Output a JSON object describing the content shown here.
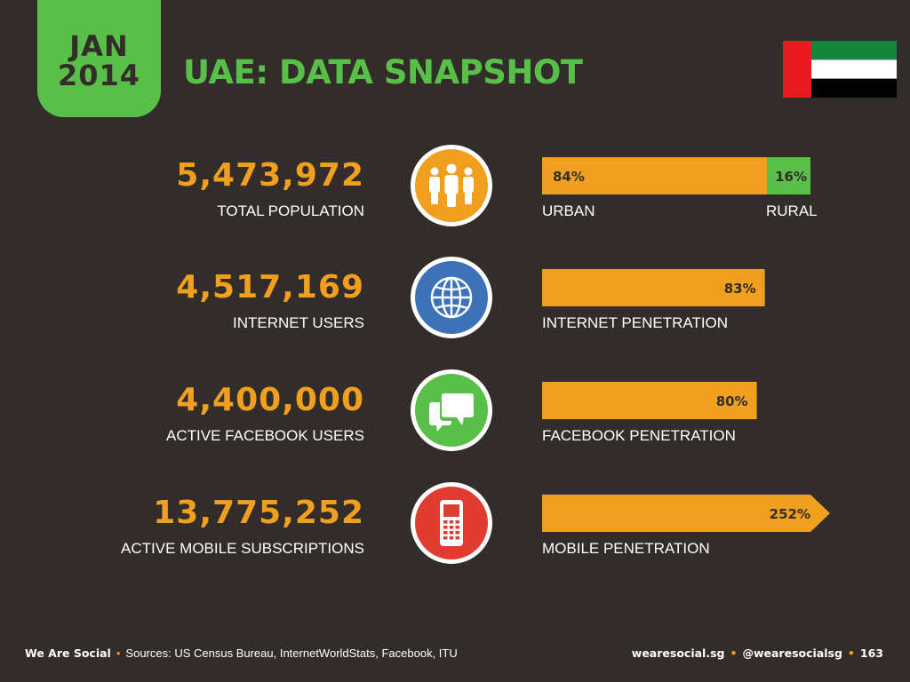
{
  "header": {
    "month": "JAN",
    "year": "2014",
    "title": "UAE: DATA SNAPSHOT"
  },
  "flag": {
    "country": "UAE",
    "colors": {
      "red": "#e8191f",
      "green": "#16843c",
      "white": "#ffffff",
      "black": "#000000"
    }
  },
  "colors": {
    "accent": "#f0a01e",
    "brand_green": "#58bf48",
    "background": "#322d2a"
  },
  "chart_data": {
    "type": "bar",
    "title": "UAE: DATA SNAPSHOT",
    "rows": [
      {
        "value": "5,473,972",
        "label": "TOTAL POPULATION",
        "icon": "people-icon",
        "icon_color": "#f0a01e",
        "bar": {
          "type": "stacked",
          "segments": [
            {
              "name": "URBAN",
              "percent": 84,
              "label": "84%",
              "color": "#f0a01e"
            },
            {
              "name": "RURAL",
              "percent": 16,
              "label": "16%",
              "color": "#58bf48"
            }
          ],
          "left_caption": "URBAN",
          "right_caption": "RURAL"
        }
      },
      {
        "value": "4,517,169",
        "label": "INTERNET USERS",
        "icon": "globe-icon",
        "icon_color": "#3d72b8",
        "bar": {
          "type": "single",
          "percent": 83,
          "label": "83%",
          "caption": "INTERNET PENETRATION"
        }
      },
      {
        "value": "4,400,000",
        "label": "ACTIVE FACEBOOK USERS",
        "icon": "chat-bubbles-icon",
        "icon_color": "#58bf48",
        "bar": {
          "type": "single",
          "percent": 80,
          "label": "80%",
          "caption": "FACEBOOK PENETRATION"
        }
      },
      {
        "value": "13,775,252",
        "label": "ACTIVE MOBILE SUBSCRIPTIONS",
        "icon": "mobile-phone-icon",
        "icon_color": "#e03c31",
        "bar": {
          "type": "arrow",
          "percent": 252,
          "label": "252%",
          "caption": "MOBILE PENETRATION"
        }
      }
    ]
  },
  "footer": {
    "brand": "We Are Social",
    "sources": "Sources: US Census Bureau, InternetWorldStats, Facebook, ITU",
    "website": "wearesocial.sg",
    "handle": "@wearesocialsg",
    "page": "163"
  }
}
